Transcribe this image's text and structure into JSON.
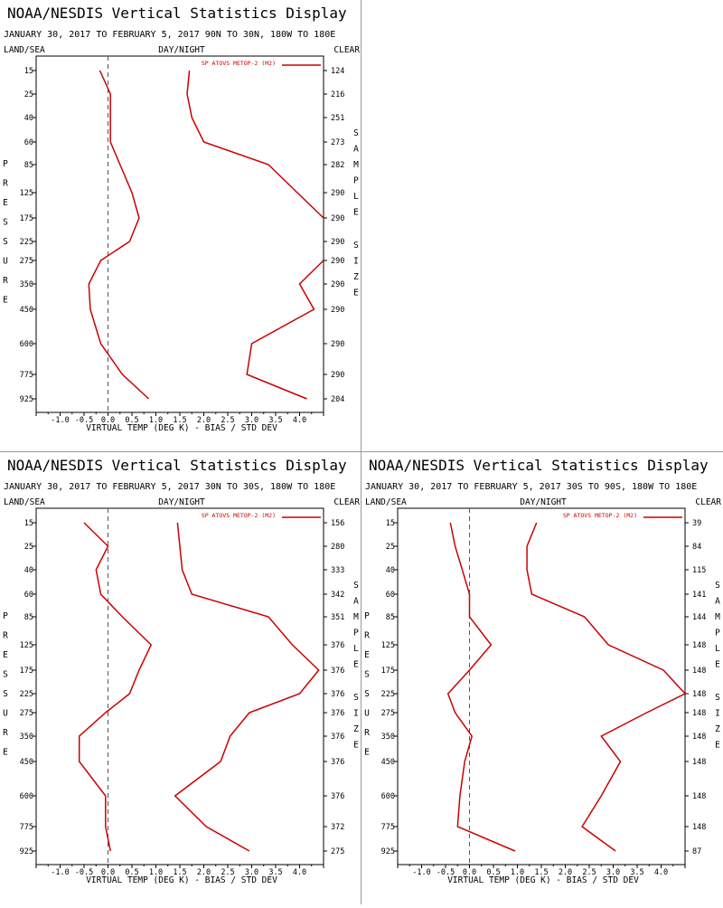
{
  "panels": [
    {
      "title": "NOAA/NESDIS Vertical Statistics Display",
      "subtitle": "JANUARY 30, 2017 TO FEBRUARY 5, 2017  90N TO 30N, 180W TO 180E",
      "corner_left": "LAND/SEA",
      "corner_mid": "DAY/NIGHT",
      "corner_right": "CLEAR",
      "left_axis_title": "PRESSURE",
      "right_axis_title_1": "SAMPLE",
      "right_axis_title_2": "SIZE",
      "xlabel": "VIRTUAL TEMP (DEG K) - BIAS / STD DEV",
      "legend": "SP ATOVS METOP-2 (M2)",
      "chart_data": {
        "type": "line",
        "pressure_levels": [
          15,
          25,
          40,
          60,
          85,
          125,
          175,
          225,
          275,
          350,
          450,
          600,
          775,
          925
        ],
        "x_ticks": [
          "-1.0",
          "-0.5",
          "0.0",
          "0.5",
          "1.0",
          "1.5",
          "2.0",
          "2.5",
          "3.0",
          "3.5",
          "4.0"
        ],
        "xlim": [
          -1.5,
          4.5
        ],
        "sample_size": [
          "124",
          "216",
          "251",
          "273",
          "282",
          "290",
          "290",
          "290",
          "290",
          "290",
          "290",
          "290",
          "290",
          "204"
        ],
        "series": [
          {
            "values": [
              -0.17,
              0.05,
              0.05,
              0.05,
              0.25,
              0.5,
              0.65,
              0.45,
              -0.15,
              -0.4,
              -0.37,
              -0.15,
              0.3,
              0.85
            ]
          },
          {
            "values": [
              1.7,
              1.65,
              1.75,
              2.0,
              3.35,
              3.95,
              4.5,
              null,
              4.5,
              4.0,
              4.3,
              3.0,
              2.9,
              4.15
            ]
          }
        ]
      }
    },
    {
      "title": "NOAA/NESDIS Vertical Statistics Display",
      "subtitle": "JANUARY 30, 2017 TO FEBRUARY 5, 2017  30N TO 30S, 180W TO 180E",
      "corner_left": "LAND/SEA",
      "corner_mid": "DAY/NIGHT",
      "corner_right": "CLEAR",
      "left_axis_title": "PRESSURE",
      "right_axis_title_1": "SAMPLE",
      "right_axis_title_2": "SIZE",
      "xlabel": "VIRTUAL TEMP (DEG K) - BIAS / STD DEV",
      "legend": "SP ATOVS METOP-2 (M2)",
      "chart_data": {
        "type": "line",
        "pressure_levels": [
          15,
          25,
          40,
          60,
          85,
          125,
          175,
          225,
          275,
          350,
          450,
          600,
          775,
          925
        ],
        "x_ticks": [
          "-1.0",
          "-0.5",
          "0.0",
          "0.5",
          "1.0",
          "1.5",
          "2.0",
          "2.5",
          "3.0",
          "3.5",
          "4.0"
        ],
        "xlim": [
          -1.5,
          4.5
        ],
        "sample_size": [
          "156",
          "280",
          "333",
          "342",
          "351",
          "376",
          "376",
          "376",
          "376",
          "376",
          "376",
          "376",
          "372",
          "275"
        ],
        "series": [
          {
            "values": [
              -0.5,
              0.0,
              -0.25,
              -0.15,
              0.3,
              0.9,
              0.65,
              0.45,
              -0.05,
              -0.6,
              -0.6,
              -0.05,
              -0.05,
              0.05
            ]
          },
          {
            "values": [
              1.45,
              1.5,
              1.55,
              1.75,
              3.35,
              3.85,
              4.4,
              4.0,
              2.95,
              2.55,
              2.35,
              1.4,
              2.05,
              2.95
            ]
          }
        ]
      }
    },
    {
      "title": "NOAA/NESDIS Vertical Statistics Display",
      "subtitle": "JANUARY 30, 2017 TO FEBRUARY 5, 2017  30S TO 90S, 180W TO 180E",
      "corner_left": "LAND/SEA",
      "corner_mid": "DAY/NIGHT",
      "corner_right": "CLEAR",
      "left_axis_title": "PRESSURE",
      "right_axis_title_1": "SAMPLE",
      "right_axis_title_2": "SIZE",
      "xlabel": "VIRTUAL TEMP (DEG K) - BIAS / STD DEV",
      "legend": "SP ATOVS METOP-2 (M2)",
      "chart_data": {
        "type": "line",
        "pressure_levels": [
          15,
          25,
          40,
          60,
          85,
          125,
          175,
          225,
          275,
          350,
          450,
          600,
          775,
          925
        ],
        "x_ticks": [
          "-1.0",
          "-0.5",
          "0.0",
          "0.5",
          "1.0",
          "1.5",
          "2.0",
          "2.5",
          "3.0",
          "3.5",
          "4.0"
        ],
        "xlim": [
          -1.5,
          4.5
        ],
        "sample_size": [
          "39",
          "84",
          "115",
          "141",
          "144",
          "148",
          "148",
          "148",
          "148",
          "148",
          "148",
          "148",
          "148",
          "87"
        ],
        "series": [
          {
            "values": [
              -0.4,
              -0.3,
              -0.15,
              0.0,
              0.0,
              0.45,
              0.0,
              -0.45,
              -0.3,
              0.05,
              -0.1,
              -0.2,
              -0.25,
              0.95
            ]
          },
          {
            "values": [
              1.4,
              1.2,
              1.2,
              1.3,
              2.4,
              2.9,
              4.05,
              4.5,
              3.7,
              2.75,
              3.15,
              2.75,
              2.35,
              3.05
            ]
          }
        ]
      }
    }
  ],
  "colors": {
    "series": "#cc0000",
    "axes": "#000000",
    "zero_line": "#555555",
    "divider": "#9a9a9a"
  }
}
